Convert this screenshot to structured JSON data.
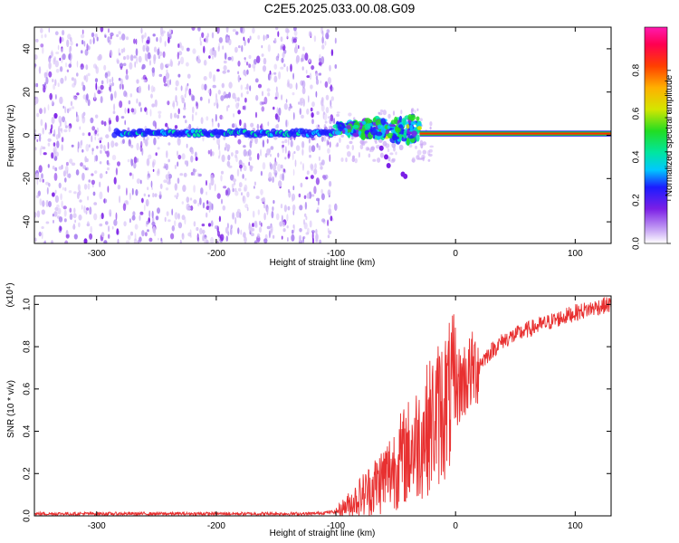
{
  "title": "C2E5.2025.033.00.08.G09",
  "chart_data": [
    {
      "type": "heatmap",
      "xlabel": "Height of straight line (km)",
      "ylabel": "Frequency (Hz)",
      "xlim": [
        -352,
        130
      ],
      "ylim": [
        -50,
        50
      ],
      "xticks": [
        -300,
        -200,
        -100,
        0,
        100
      ],
      "yticks": [
        -40,
        -20,
        0,
        20,
        40
      ],
      "colorbar": {
        "label": "Normalized spectral amplitude",
        "range": [
          0,
          1
        ],
        "ticks": [
          "0.0",
          "0.2",
          "0.4",
          "0.6",
          "0.8"
        ],
        "colormap": [
          "#ffffff",
          "#c9a8f5",
          "#7b1fe6",
          "#1c1cff",
          "#00c8ff",
          "#00e6a0",
          "#22dd22",
          "#d4e600",
          "#ffb000",
          "#ff4000",
          "#ff0050",
          "#ff1ab0"
        ]
      },
      "series": [
        {
          "x_start": -352,
          "x_end": -100,
          "amplitude": 0.05,
          "spread_hz": 50
        },
        {
          "x_start": -285,
          "x_end": -100,
          "amplitude": 0.32,
          "center_hz": 1,
          "spread_hz": 3
        },
        {
          "x_start": -100,
          "x_end": -30,
          "amplitude": 0.35,
          "center_hz": 3,
          "spread_hz": 8
        },
        {
          "x_start": -30,
          "x_end": 130,
          "amplitude": 0.95,
          "center_hz": 0.8,
          "spread_hz": 1
        }
      ]
    },
    {
      "type": "line",
      "xlabel": "Height of straight line (km)",
      "ylabel": "SNR (10 * v/v)",
      "y_multiplier": "(x10⁴)",
      "xlim": [
        -352,
        130
      ],
      "ylim": [
        0,
        1.04
      ],
      "xticks": [
        -300,
        -200,
        -100,
        0,
        100
      ],
      "yticks": [
        "0.0",
        "0.2",
        "0.4",
        "0.6",
        "0.8",
        "1.0"
      ],
      "color": "#e83030",
      "x": [
        -352,
        -300,
        -250,
        -200,
        -150,
        -120,
        -100,
        -90,
        -80,
        -70,
        -60,
        -50,
        -40,
        -30,
        -20,
        -10,
        0,
        10,
        20,
        30,
        40,
        60,
        80,
        100,
        120,
        130
      ],
      "y": [
        0.01,
        0.01,
        0.01,
        0.01,
        0.01,
        0.01,
        0.02,
        0.05,
        0.09,
        0.13,
        0.18,
        0.24,
        0.3,
        0.36,
        0.44,
        0.52,
        0.6,
        0.66,
        0.72,
        0.78,
        0.83,
        0.88,
        0.92,
        0.96,
        0.99,
        1.0
      ]
    }
  ]
}
